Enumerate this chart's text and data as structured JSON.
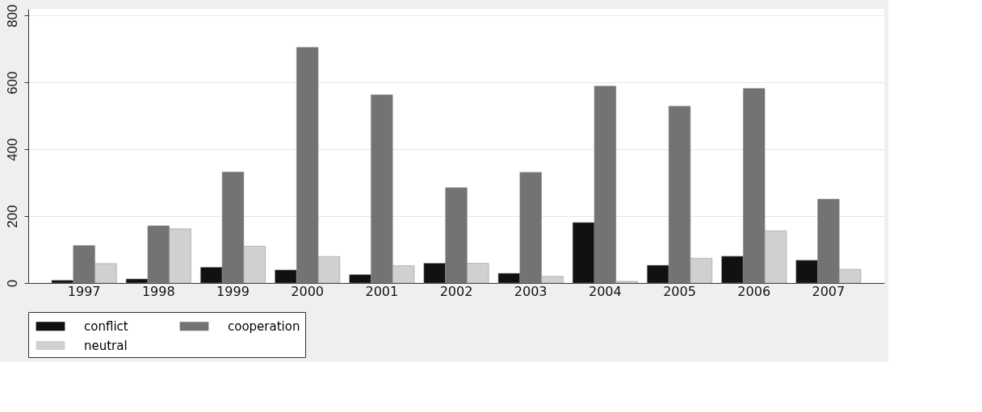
{
  "chart_data": {
    "type": "bar",
    "categories": [
      "1997",
      "1998",
      "1999",
      "2000",
      "2001",
      "2002",
      "2003",
      "2004",
      "2005",
      "2006",
      "2007"
    ],
    "series": [
      {
        "name": "conflict",
        "color": "#111111",
        "values": [
          8,
          12,
          47,
          39,
          25,
          59,
          29,
          181,
          53,
          80,
          68
        ]
      },
      {
        "name": "cooperation",
        "color": "#737373",
        "values": [
          112,
          171,
          332,
          705,
          563,
          285,
          331,
          589,
          529,
          582,
          251
        ]
      },
      {
        "name": "neutral",
        "color": "#d0d0d0",
        "values": [
          58,
          162,
          110,
          79,
          52,
          59,
          20,
          5,
          74,
          156,
          41
        ]
      }
    ],
    "ylim": [
      0,
      820
    ],
    "yticks": [
      0,
      200,
      400,
      600,
      800
    ],
    "grid": "y",
    "legend": "bottom"
  }
}
